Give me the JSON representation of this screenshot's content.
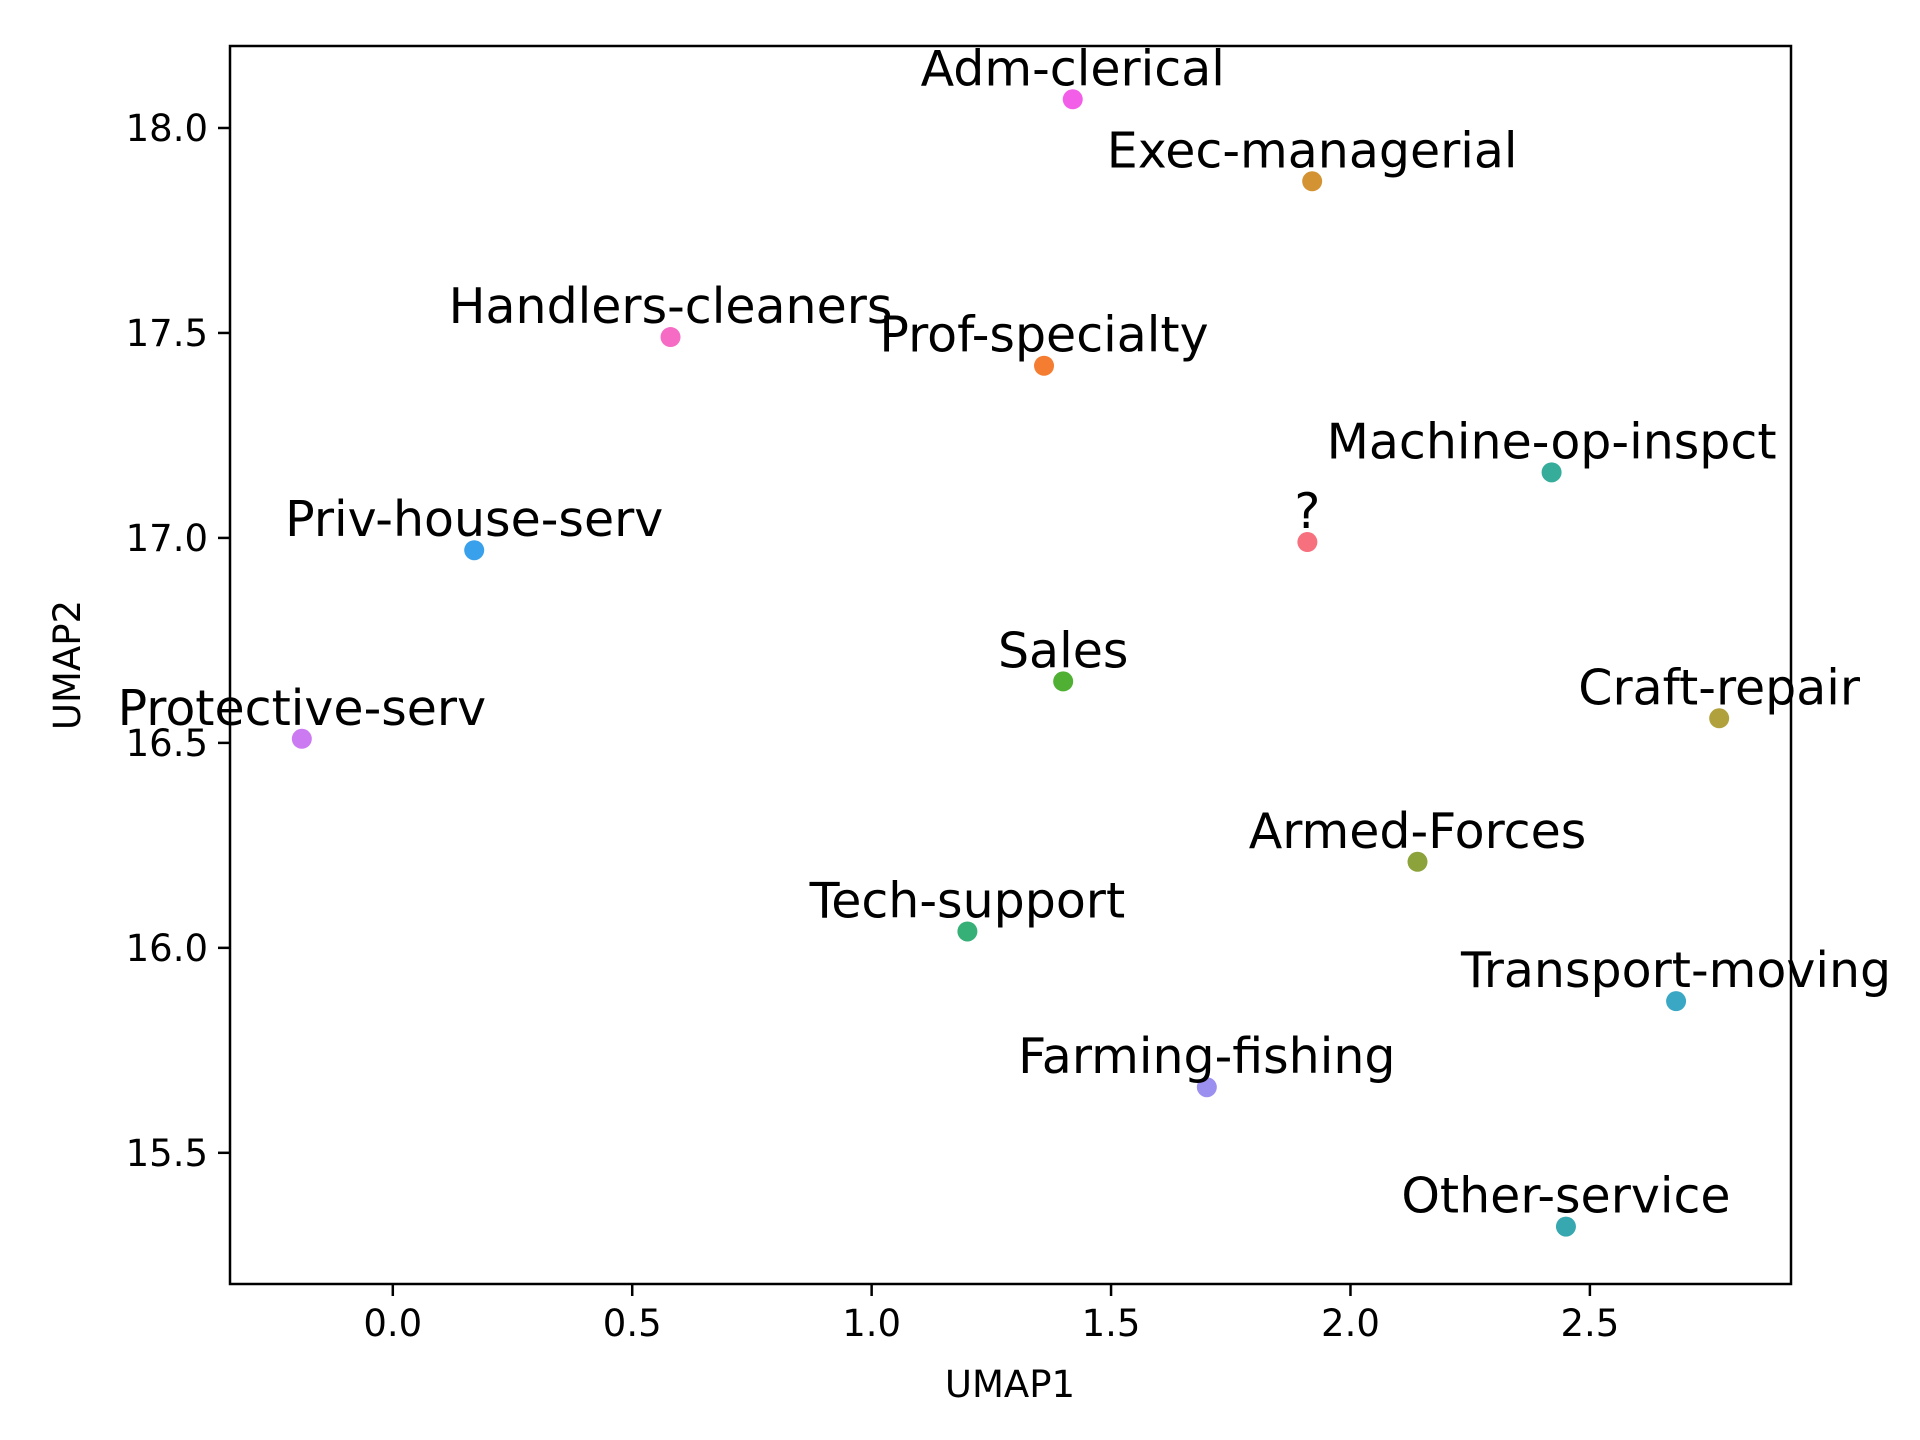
{
  "chart_data": {
    "type": "scatter",
    "title": "",
    "xlabel": "UMAP1",
    "ylabel": "UMAP2",
    "xlim": [
      -0.34,
      2.92
    ],
    "ylim": [
      15.18,
      18.2
    ],
    "xticks": [
      "0.0",
      "0.5",
      "1.0",
      "1.5",
      "2.0",
      "2.5"
    ],
    "yticks": [
      "15.5",
      "16.0",
      "16.5",
      "17.0",
      "17.5",
      "18.0"
    ],
    "grid": false,
    "legend": "none",
    "points": [
      {
        "label": "Adm-clerical",
        "x": 1.42,
        "y": 18.07,
        "color": "#f35ee9"
      },
      {
        "label": "Exec-managerial",
        "x": 1.92,
        "y": 17.87,
        "color": "#d39333"
      },
      {
        "label": "Handlers-cleaners",
        "x": 0.58,
        "y": 17.49,
        "color": "#f66bc4"
      },
      {
        "label": "Prof-specialty",
        "x": 1.36,
        "y": 17.42,
        "color": "#f57d32"
      },
      {
        "label": "Machine-op-inspct",
        "x": 2.42,
        "y": 17.16,
        "color": "#36ad9a"
      },
      {
        "label": "?",
        "x": 1.91,
        "y": 16.99,
        "color": "#f6707e"
      },
      {
        "label": "Priv-house-serv",
        "x": 0.17,
        "y": 16.97,
        "color": "#39a0ec"
      },
      {
        "label": "Sales",
        "x": 1.4,
        "y": 16.65,
        "color": "#4fb033"
      },
      {
        "label": "Craft-repair",
        "x": 2.77,
        "y": 16.56,
        "color": "#b0a13c"
      },
      {
        "label": "Protective-serv",
        "x": -0.19,
        "y": 16.51,
        "color": "#cc7af2"
      },
      {
        "label": "Armed-Forces",
        "x": 2.14,
        "y": 16.21,
        "color": "#8ca23a"
      },
      {
        "label": "Tech-support",
        "x": 1.2,
        "y": 16.04,
        "color": "#37b077"
      },
      {
        "label": "Transport-moving",
        "x": 2.68,
        "y": 15.87,
        "color": "#3aa8c5"
      },
      {
        "label": "Farming-fishing",
        "x": 1.7,
        "y": 15.66,
        "color": "#9b8ff0"
      },
      {
        "label": "Other-service",
        "x": 2.45,
        "y": 15.32,
        "color": "#38a8b0"
      }
    ]
  }
}
